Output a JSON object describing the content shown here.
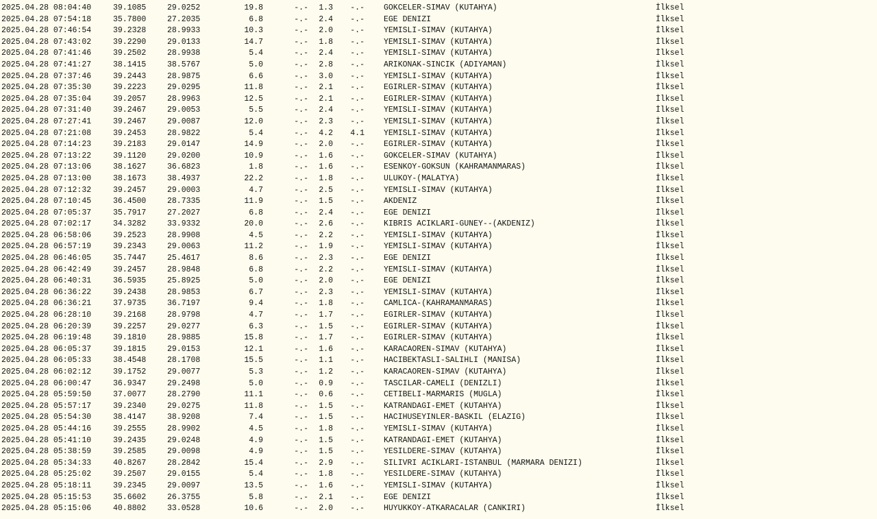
{
  "page": {
    "kind": "earthquake-bulletin-text-listing",
    "background_color": "#fdfcee",
    "text_color": "#141414",
    "quality_label": "İlksel",
    "no_value_placeholder": "-.-"
  },
  "columns": [
    "datetime",
    "latitude",
    "longitude",
    "depth_km",
    "md",
    "ml",
    "mw",
    "location",
    "quality"
  ],
  "rows": [
    {
      "datetime": "2025.04.28 08:04:40",
      "lat": "39.1085",
      "lon": "29.0252",
      "depth": "19.8",
      "md": "-.-",
      "ml": "1.3",
      "mw": "-.-",
      "location": "GOKCELER-SIMAV (KUTAHYA)",
      "quality": "İlksel"
    },
    {
      "datetime": "2025.04.28 07:54:18",
      "lat": "35.7800",
      "lon": "27.2035",
      "depth": "6.8",
      "md": "-.-",
      "ml": "2.4",
      "mw": "-.-",
      "location": "EGE DENIZI",
      "quality": "İlksel"
    },
    {
      "datetime": "2025.04.28 07:46:54",
      "lat": "39.2328",
      "lon": "28.9933",
      "depth": "10.3",
      "md": "-.-",
      "ml": "2.0",
      "mw": "-.-",
      "location": "YEMISLI-SIMAV (KUTAHYA)",
      "quality": "İlksel"
    },
    {
      "datetime": "2025.04.28 07:43:02",
      "lat": "39.2290",
      "lon": "29.0133",
      "depth": "14.7",
      "md": "-.-",
      "ml": "1.8",
      "mw": "-.-",
      "location": "YEMISLI-SIMAV (KUTAHYA)",
      "quality": "İlksel"
    },
    {
      "datetime": "2025.04.28 07:41:46",
      "lat": "39.2502",
      "lon": "28.9938",
      "depth": "5.4",
      "md": "-.-",
      "ml": "2.4",
      "mw": "-.-",
      "location": "YEMISLI-SIMAV (KUTAHYA)",
      "quality": "İlksel"
    },
    {
      "datetime": "2025.04.28 07:41:27",
      "lat": "38.1415",
      "lon": "38.5767",
      "depth": "5.0",
      "md": "-.-",
      "ml": "2.8",
      "mw": "-.-",
      "location": "ARIKONAK-SINCIK (ADIYAMAN)",
      "quality": "İlksel"
    },
    {
      "datetime": "2025.04.28 07:37:46",
      "lat": "39.2443",
      "lon": "28.9875",
      "depth": "6.6",
      "md": "-.-",
      "ml": "3.0",
      "mw": "-.-",
      "location": "YEMISLI-SIMAV (KUTAHYA)",
      "quality": "İlksel"
    },
    {
      "datetime": "2025.04.28 07:35:30",
      "lat": "39.2223",
      "lon": "29.0295",
      "depth": "11.8",
      "md": "-.-",
      "ml": "2.1",
      "mw": "-.-",
      "location": "EGIRLER-SIMAV (KUTAHYA)",
      "quality": "İlksel"
    },
    {
      "datetime": "2025.04.28 07:35:04",
      "lat": "39.2057",
      "lon": "28.9963",
      "depth": "12.5",
      "md": "-.-",
      "ml": "2.1",
      "mw": "-.-",
      "location": "EGIRLER-SIMAV (KUTAHYA)",
      "quality": "İlksel"
    },
    {
      "datetime": "2025.04.28 07:31:40",
      "lat": "39.2467",
      "lon": "29.0053",
      "depth": "5.5",
      "md": "-.-",
      "ml": "2.4",
      "mw": "-.-",
      "location": "YEMISLI-SIMAV (KUTAHYA)",
      "quality": "İlksel"
    },
    {
      "datetime": "2025.04.28 07:27:41",
      "lat": "39.2467",
      "lon": "29.0087",
      "depth": "12.0",
      "md": "-.-",
      "ml": "2.3",
      "mw": "-.-",
      "location": "YEMISLI-SIMAV (KUTAHYA)",
      "quality": "İlksel"
    },
    {
      "datetime": "2025.04.28 07:21:08",
      "lat": "39.2453",
      "lon": "28.9822",
      "depth": "5.4",
      "md": "-.-",
      "ml": "4.2",
      "mw": "4.1",
      "location": "YEMISLI-SIMAV (KUTAHYA)",
      "quality": "İlksel"
    },
    {
      "datetime": "2025.04.28 07:14:23",
      "lat": "39.2183",
      "lon": "29.0147",
      "depth": "14.9",
      "md": "-.-",
      "ml": "2.0",
      "mw": "-.-",
      "location": "EGIRLER-SIMAV (KUTAHYA)",
      "quality": "İlksel"
    },
    {
      "datetime": "2025.04.28 07:13:22",
      "lat": "39.1120",
      "lon": "29.0200",
      "depth": "10.9",
      "md": "-.-",
      "ml": "1.6",
      "mw": "-.-",
      "location": "GOKCELER-SIMAV (KUTAHYA)",
      "quality": "İlksel"
    },
    {
      "datetime": "2025.04.28 07:13:06",
      "lat": "38.1627",
      "lon": "36.6823",
      "depth": "1.8",
      "md": "-.-",
      "ml": "1.6",
      "mw": "-.-",
      "location": "ESENKOY-GOKSUN (KAHRAMANMARAS)",
      "quality": "İlksel"
    },
    {
      "datetime": "2025.04.28 07:13:00",
      "lat": "38.1673",
      "lon": "38.4937",
      "depth": "22.2",
      "md": "-.-",
      "ml": "1.8",
      "mw": "-.-",
      "location": "ULUKOY-(MALATYA)",
      "quality": "İlksel"
    },
    {
      "datetime": "2025.04.28 07:12:32",
      "lat": "39.2457",
      "lon": "29.0003",
      "depth": "4.7",
      "md": "-.-",
      "ml": "2.5",
      "mw": "-.-",
      "location": "YEMISLI-SIMAV (KUTAHYA)",
      "quality": "İlksel"
    },
    {
      "datetime": "2025.04.28 07:10:45",
      "lat": "36.4500",
      "lon": "28.7335",
      "depth": "11.9",
      "md": "-.-",
      "ml": "1.5",
      "mw": "-.-",
      "location": "AKDENIZ",
      "quality": "İlksel"
    },
    {
      "datetime": "2025.04.28 07:05:37",
      "lat": "35.7917",
      "lon": "27.2027",
      "depth": "6.8",
      "md": "-.-",
      "ml": "2.4",
      "mw": "-.-",
      "location": "EGE DENIZI",
      "quality": "İlksel"
    },
    {
      "datetime": "2025.04.28 07:02:17",
      "lat": "34.3282",
      "lon": "33.9332",
      "depth": "20.0",
      "md": "-.-",
      "ml": "2.6",
      "mw": "-.-",
      "location": "KIBRIS ACIKLARI-GUNEY--(AKDENIZ)",
      "quality": "İlksel"
    },
    {
      "datetime": "2025.04.28 06:58:06",
      "lat": "39.2523",
      "lon": "28.9908",
      "depth": "4.5",
      "md": "-.-",
      "ml": "2.2",
      "mw": "-.-",
      "location": "YEMISLI-SIMAV (KUTAHYA)",
      "quality": "İlksel"
    },
    {
      "datetime": "2025.04.28 06:57:19",
      "lat": "39.2343",
      "lon": "29.0063",
      "depth": "11.2",
      "md": "-.-",
      "ml": "1.9",
      "mw": "-.-",
      "location": "YEMISLI-SIMAV (KUTAHYA)",
      "quality": "İlksel"
    },
    {
      "datetime": "2025.04.28 06:46:05",
      "lat": "35.7447",
      "lon": "25.4617",
      "depth": "8.6",
      "md": "-.-",
      "ml": "2.3",
      "mw": "-.-",
      "location": "EGE DENIZI",
      "quality": "İlksel"
    },
    {
      "datetime": "2025.04.28 06:42:49",
      "lat": "39.2457",
      "lon": "28.9848",
      "depth": "6.8",
      "md": "-.-",
      "ml": "2.2",
      "mw": "-.-",
      "location": "YEMISLI-SIMAV (KUTAHYA)",
      "quality": "İlksel"
    },
    {
      "datetime": "2025.04.28 06:40:31",
      "lat": "36.5935",
      "lon": "25.8925",
      "depth": "5.0",
      "md": "-.-",
      "ml": "2.0",
      "mw": "-.-",
      "location": "EGE DENIZI",
      "quality": "İlksel"
    },
    {
      "datetime": "2025.04.28 06:36:22",
      "lat": "39.2438",
      "lon": "28.9853",
      "depth": "6.7",
      "md": "-.-",
      "ml": "2.3",
      "mw": "-.-",
      "location": "YEMISLI-SIMAV (KUTAHYA)",
      "quality": "İlksel"
    },
    {
      "datetime": "2025.04.28 06:36:21",
      "lat": "37.9735",
      "lon": "36.7197",
      "depth": "9.4",
      "md": "-.-",
      "ml": "1.8",
      "mw": "-.-",
      "location": "CAMLICA-(KAHRAMANMARAS)",
      "quality": "İlksel"
    },
    {
      "datetime": "2025.04.28 06:28:10",
      "lat": "39.2168",
      "lon": "28.9798",
      "depth": "4.7",
      "md": "-.-",
      "ml": "1.7",
      "mw": "-.-",
      "location": "EGIRLER-SIMAV (KUTAHYA)",
      "quality": "İlksel"
    },
    {
      "datetime": "2025.04.28 06:20:39",
      "lat": "39.2257",
      "lon": "29.0277",
      "depth": "6.3",
      "md": "-.-",
      "ml": "1.5",
      "mw": "-.-",
      "location": "EGIRLER-SIMAV (KUTAHYA)",
      "quality": "İlksel"
    },
    {
      "datetime": "2025.04.28 06:19:48",
      "lat": "39.1810",
      "lon": "28.9885",
      "depth": "15.8",
      "md": "-.-",
      "ml": "1.7",
      "mw": "-.-",
      "location": "EGIRLER-SIMAV (KUTAHYA)",
      "quality": "İlksel"
    },
    {
      "datetime": "2025.04.28 06:05:37",
      "lat": "39.1815",
      "lon": "29.0153",
      "depth": "12.1",
      "md": "-.-",
      "ml": "1.6",
      "mw": "-.-",
      "location": "KARACAOREN-SIMAV (KUTAHYA)",
      "quality": "İlksel"
    },
    {
      "datetime": "2025.04.28 06:05:33",
      "lat": "38.4548",
      "lon": "28.1708",
      "depth": "15.5",
      "md": "-.-",
      "ml": "1.1",
      "mw": "-.-",
      "location": "HACIBEKTASLI-SALIHLI (MANISA)",
      "quality": "İlksel"
    },
    {
      "datetime": "2025.04.28 06:02:12",
      "lat": "39.1752",
      "lon": "29.0077",
      "depth": "5.3",
      "md": "-.-",
      "ml": "1.2",
      "mw": "-.-",
      "location": "KARACAOREN-SIMAV (KUTAHYA)",
      "quality": "İlksel"
    },
    {
      "datetime": "2025.04.28 06:00:47",
      "lat": "36.9347",
      "lon": "29.2498",
      "depth": "5.0",
      "md": "-.-",
      "ml": "0.9",
      "mw": "-.-",
      "location": "TASCILAR-CAMELI (DENIZLI)",
      "quality": "İlksel"
    },
    {
      "datetime": "2025.04.28 05:59:50",
      "lat": "37.0077",
      "lon": "28.2790",
      "depth": "11.1",
      "md": "-.-",
      "ml": "0.6",
      "mw": "-.-",
      "location": "CETIBELI-MARMARIS (MUGLA)",
      "quality": "İlksel"
    },
    {
      "datetime": "2025.04.28 05:57:17",
      "lat": "39.2340",
      "lon": "29.0275",
      "depth": "11.8",
      "md": "-.-",
      "ml": "1.5",
      "mw": "-.-",
      "location": "KATRANDAGI-EMET (KUTAHYA)",
      "quality": "İlksel"
    },
    {
      "datetime": "2025.04.28 05:54:30",
      "lat": "38.4147",
      "lon": "38.9208",
      "depth": "7.4",
      "md": "-.-",
      "ml": "1.5",
      "mw": "-.-",
      "location": "HACIHUSEYINLER-BASKIL (ELAZIG)",
      "quality": "İlksel"
    },
    {
      "datetime": "2025.04.28 05:44:16",
      "lat": "39.2555",
      "lon": "28.9902",
      "depth": "4.5",
      "md": "-.-",
      "ml": "1.8",
      "mw": "-.-",
      "location": "YEMISLI-SIMAV (KUTAHYA)",
      "quality": "İlksel"
    },
    {
      "datetime": "2025.04.28 05:41:10",
      "lat": "39.2435",
      "lon": "29.0248",
      "depth": "4.9",
      "md": "-.-",
      "ml": "1.5",
      "mw": "-.-",
      "location": "KATRANDAGI-EMET (KUTAHYA)",
      "quality": "İlksel"
    },
    {
      "datetime": "2025.04.28 05:38:59",
      "lat": "39.2585",
      "lon": "29.0098",
      "depth": "4.9",
      "md": "-.-",
      "ml": "1.5",
      "mw": "-.-",
      "location": "YESILDERE-SIMAV (KUTAHYA)",
      "quality": "İlksel"
    },
    {
      "datetime": "2025.04.28 05:34:33",
      "lat": "40.8267",
      "lon": "28.2842",
      "depth": "15.4",
      "md": "-.-",
      "ml": "2.9",
      "mw": "-.-",
      "location": "SILIVRI ACIKLARI-ISTANBUL (MARMARA DENIZI)",
      "quality": "İlksel"
    },
    {
      "datetime": "2025.04.28 05:25:02",
      "lat": "39.2507",
      "lon": "29.0155",
      "depth": "5.4",
      "md": "-.-",
      "ml": "1.8",
      "mw": "-.-",
      "location": "YESILDERE-SIMAV (KUTAHYA)",
      "quality": "İlksel"
    },
    {
      "datetime": "2025.04.28 05:18:11",
      "lat": "39.2345",
      "lon": "29.0097",
      "depth": "13.5",
      "md": "-.-",
      "ml": "1.6",
      "mw": "-.-",
      "location": "YEMISLI-SIMAV (KUTAHYA)",
      "quality": "İlksel"
    },
    {
      "datetime": "2025.04.28 05:15:53",
      "lat": "35.6602",
      "lon": "26.3755",
      "depth": "5.8",
      "md": "-.-",
      "ml": "2.1",
      "mw": "-.-",
      "location": "EGE DENIZI",
      "quality": "İlksel"
    },
    {
      "datetime": "2025.04.28 05:15:06",
      "lat": "40.8802",
      "lon": "33.0528",
      "depth": "10.6",
      "md": "-.-",
      "ml": "2.0",
      "mw": "-.-",
      "location": "HUYUKKOY-ATKARACALAR (CANKIRI)",
      "quality": "İlksel"
    }
  ]
}
